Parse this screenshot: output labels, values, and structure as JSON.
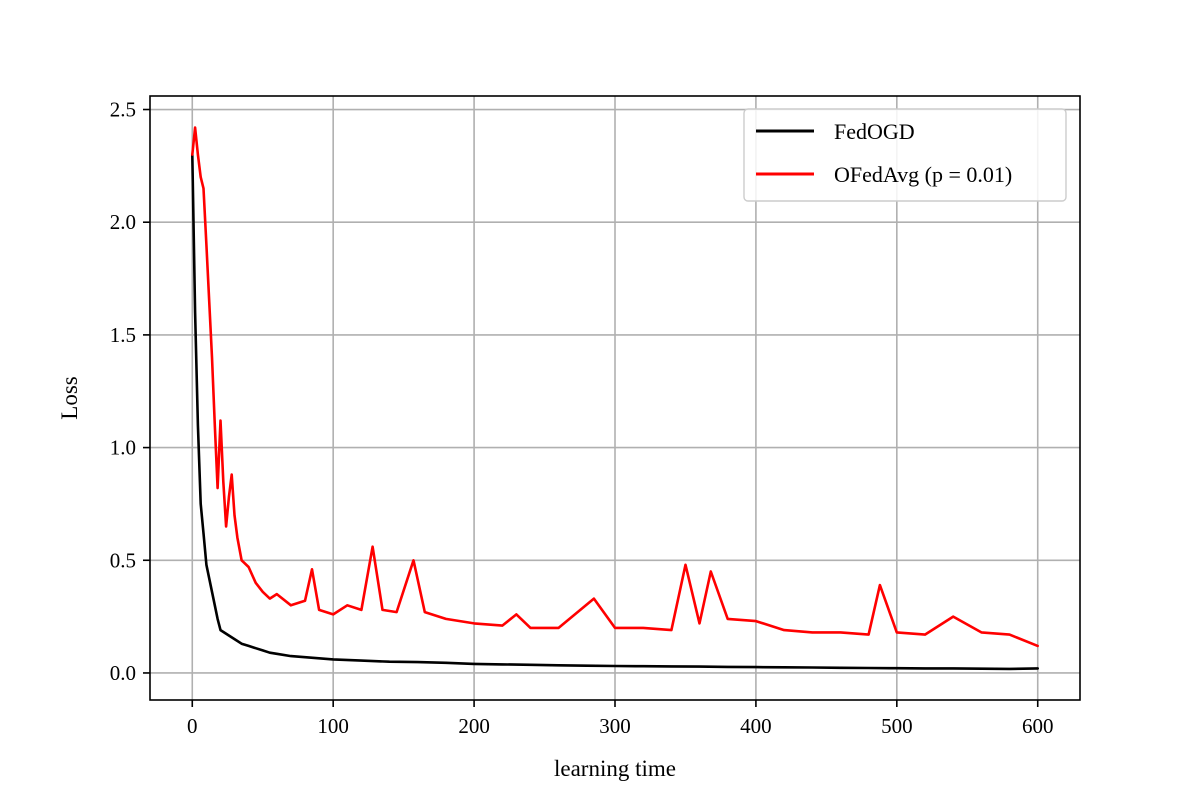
{
  "chart_data": {
    "type": "line",
    "xlabel": "learning time",
    "ylabel": "Loss",
    "xlim": [
      -30,
      630
    ],
    "ylim": [
      -0.12,
      2.56
    ],
    "xticks": [
      0,
      100,
      200,
      300,
      400,
      500,
      600
    ],
    "xtick_labels": [
      "0",
      "100",
      "200",
      "300",
      "400",
      "500",
      "600"
    ],
    "yticks": [
      0.0,
      0.5,
      1.0,
      1.5,
      2.0,
      2.5
    ],
    "ytick_labels": [
      "0.0",
      "0.5",
      "1.0",
      "1.5",
      "2.0",
      "2.5"
    ],
    "grid": true,
    "legend_position": "top-right",
    "series": [
      {
        "name": "FedOGD",
        "color": "#000000",
        "x": [
          0,
          2,
          4,
          6,
          8,
          10,
          12,
          14,
          16,
          18,
          20,
          25,
          30,
          35,
          40,
          45,
          50,
          55,
          60,
          70,
          80,
          90,
          100,
          120,
          140,
          160,
          180,
          200,
          220,
          240,
          260,
          280,
          300,
          320,
          340,
          360,
          380,
          400,
          420,
          440,
          460,
          480,
          500,
          520,
          540,
          560,
          580,
          600
        ],
        "y": [
          2.3,
          1.6,
          1.1,
          0.75,
          0.62,
          0.48,
          0.42,
          0.36,
          0.3,
          0.24,
          0.19,
          0.17,
          0.15,
          0.13,
          0.12,
          0.11,
          0.1,
          0.09,
          0.085,
          0.075,
          0.07,
          0.065,
          0.06,
          0.055,
          0.05,
          0.048,
          0.045,
          0.04,
          0.038,
          0.036,
          0.034,
          0.032,
          0.031,
          0.03,
          0.029,
          0.028,
          0.027,
          0.026,
          0.025,
          0.024,
          0.023,
          0.022,
          0.021,
          0.02,
          0.02,
          0.019,
          0.018,
          0.02
        ]
      },
      {
        "name": "OFedAvg (p = 0.01)",
        "color": "#ff0000",
        "x": [
          0,
          2,
          4,
          6,
          8,
          10,
          12,
          14,
          16,
          18,
          20,
          22,
          24,
          26,
          28,
          30,
          32,
          35,
          40,
          45,
          50,
          55,
          60,
          70,
          80,
          85,
          90,
          100,
          110,
          120,
          128,
          135,
          145,
          157,
          165,
          180,
          200,
          220,
          230,
          240,
          260,
          285,
          300,
          320,
          340,
          350,
          360,
          368,
          380,
          400,
          420,
          440,
          460,
          480,
          488,
          500,
          520,
          540,
          560,
          580,
          600
        ],
        "y": [
          2.3,
          2.42,
          2.3,
          2.2,
          2.15,
          1.9,
          1.65,
          1.4,
          1.1,
          0.82,
          1.12,
          0.85,
          0.65,
          0.78,
          0.88,
          0.7,
          0.6,
          0.5,
          0.47,
          0.4,
          0.36,
          0.33,
          0.35,
          0.3,
          0.32,
          0.46,
          0.28,
          0.26,
          0.3,
          0.28,
          0.56,
          0.28,
          0.27,
          0.5,
          0.27,
          0.24,
          0.22,
          0.21,
          0.26,
          0.2,
          0.2,
          0.33,
          0.2,
          0.2,
          0.19,
          0.48,
          0.22,
          0.45,
          0.24,
          0.23,
          0.19,
          0.18,
          0.18,
          0.17,
          0.39,
          0.18,
          0.17,
          0.25,
          0.18,
          0.17,
          0.12
        ]
      }
    ]
  }
}
